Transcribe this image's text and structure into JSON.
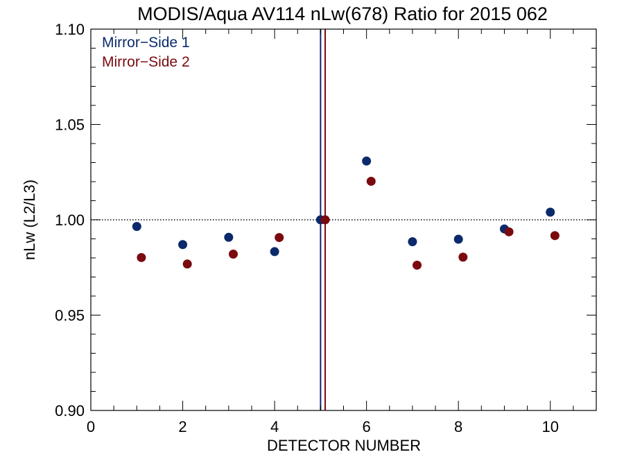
{
  "chart_data": {
    "type": "scatter",
    "title": "MODIS/Aqua AV114 nLw(678) Ratio for 2015 062",
    "xlabel": "DETECTOR NUMBER",
    "ylabel": "nLw (L2/L3)",
    "xlim": [
      0,
      11
    ],
    "ylim": [
      0.9,
      1.1
    ],
    "x_ticks": [
      0,
      2,
      4,
      6,
      8,
      10
    ],
    "x_tick_labels": [
      "0",
      "2",
      "4",
      "6",
      "8",
      "10"
    ],
    "y_ticks": [
      0.9,
      0.95,
      1.0,
      1.05,
      1.1
    ],
    "y_tick_labels": [
      "0.90",
      "0.95",
      "1.00",
      "1.05",
      "1.10"
    ],
    "reference_line_y": 1.0,
    "vertical_lines": [
      {
        "x": 5.0,
        "color": "#0b2a6b"
      },
      {
        "x": 5.1,
        "color": "#7a0a0f"
      }
    ],
    "legend_placement": "top-left",
    "series": [
      {
        "name": "Mirror−Side 1",
        "color": "#0b2a6b",
        "x": [
          1,
          2,
          3,
          4,
          5,
          6,
          7,
          8,
          9,
          10
        ],
        "y": [
          0.9965,
          0.987,
          0.9908,
          0.9833,
          1.0,
          1.0308,
          0.9885,
          0.9898,
          0.9952,
          1.004
        ]
      },
      {
        "name": "Mirror−Side 2",
        "color": "#7a0a0f",
        "x": [
          1.1,
          2.1,
          3.1,
          4.1,
          5.1,
          6.1,
          7.1,
          8.1,
          9.1,
          10.1
        ],
        "y": [
          0.9802,
          0.9768,
          0.982,
          0.9907,
          1.0,
          1.0202,
          0.9762,
          0.9804,
          0.9937,
          0.9917
        ]
      }
    ]
  }
}
